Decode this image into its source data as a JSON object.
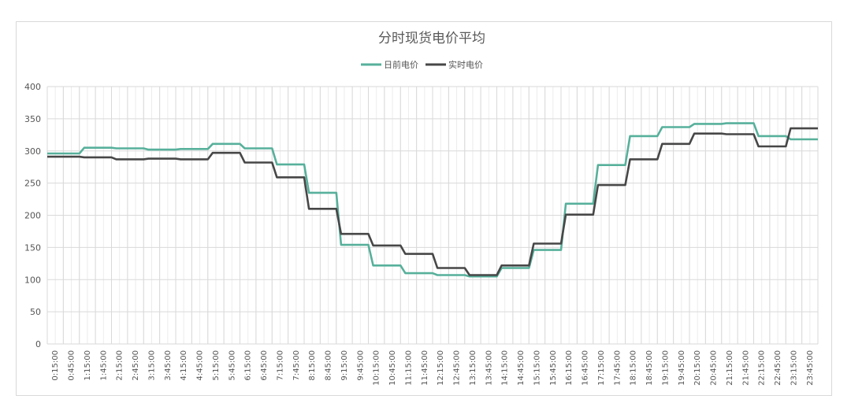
{
  "colors": {
    "day_ahead": "#57b09b",
    "real_time": "#474747",
    "grid": "#d9d9d9",
    "axis_text": "#555555",
    "title_text": "#595959"
  },
  "chart_data": {
    "type": "line",
    "title": "分时现货电价平均",
    "xlabel": "",
    "ylabel": "",
    "ylim": [
      0,
      400
    ],
    "y_ticks": [
      0,
      50,
      100,
      150,
      200,
      250,
      300,
      350,
      400
    ],
    "grid": true,
    "legend_position": "top-center",
    "x_tick_labels": [
      "0:15:00",
      "0:45:00",
      "1:15:00",
      "1:45:00",
      "2:15:00",
      "2:45:00",
      "3:15:00",
      "3:45:00",
      "4:15:00",
      "4:45:00",
      "5:15:00",
      "5:45:00",
      "6:15:00",
      "6:45:00",
      "7:15:00",
      "7:45:00",
      "8:15:00",
      "8:45:00",
      "9:15:00",
      "9:45:00",
      "10:15:00",
      "10:45:00",
      "11:15:00",
      "11:45:00",
      "12:15:00",
      "12:45:00",
      "13:15:00",
      "13:45:00",
      "14:15:00",
      "14:45:00",
      "15:15:00",
      "15:45:00",
      "16:15:00",
      "16:45:00",
      "17:15:00",
      "17:45:00",
      "18:15:00",
      "18:45:00",
      "19:15:00",
      "19:45:00",
      "20:15:00",
      "20:45:00",
      "21:15:00",
      "21:45:00",
      "22:15:00",
      "22:45:00",
      "23:15:00",
      "23:45:00"
    ],
    "hourly_series": [
      {
        "name": "日前电价",
        "color_key": "day_ahead",
        "values": [
          296,
          305,
          304,
          302,
          303,
          311,
          304,
          279,
          235,
          154,
          122,
          110,
          107,
          105,
          118,
          146,
          218,
          278,
          323,
          337,
          342,
          343,
          323,
          318
        ]
      },
      {
        "name": "实时电价",
        "color_key": "real_time",
        "values": [
          291,
          290,
          287,
          288,
          287,
          297,
          282,
          259,
          210,
          171,
          153,
          140,
          118,
          107,
          122,
          156,
          201,
          247,
          287,
          311,
          327,
          326,
          307,
          335
        ]
      }
    ]
  }
}
